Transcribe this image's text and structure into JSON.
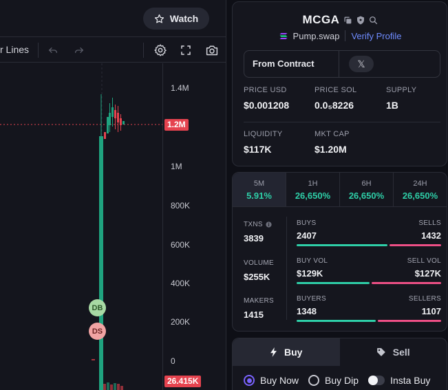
{
  "chart": {
    "watch_label": "Watch",
    "toolbar_label": "r Lines",
    "price_axis": [
      "1.4M",
      "1.2M",
      "1M",
      "800K",
      "600K",
      "400K",
      "200K",
      "0"
    ],
    "current_price_tag": "1.2M",
    "volume_tag": "26.415K",
    "markers": {
      "dev_buy": "DB",
      "dev_sell": "DS"
    }
  },
  "token": {
    "name": "MCGA",
    "dex": "Pump.swap",
    "verify_label": "Verify Profile",
    "source_label": "From Contract",
    "x_label": "𝕏",
    "stats": [
      {
        "label": "PRICE USD",
        "value": "$0.001208"
      },
      {
        "label": "PRICE SOL",
        "value": "0.0₅8226"
      },
      {
        "label": "SUPPLY",
        "value": "1B"
      },
      {
        "label": "LIQUIDITY",
        "value": "$117K"
      },
      {
        "label": "MKT CAP",
        "value": "$1.20M"
      }
    ]
  },
  "timeframes": [
    {
      "label": "5M",
      "value": "5.91%"
    },
    {
      "label": "1H",
      "value": "26,650%"
    },
    {
      "label": "6H",
      "value": "26,650%"
    },
    {
      "label": "24H",
      "value": "26,650%"
    }
  ],
  "activity": {
    "txns": {
      "label": "TXNS",
      "value": "3839"
    },
    "volume": {
      "label": "VOLUME",
      "value": "$255K"
    },
    "makers": {
      "label": "MAKERS",
      "value": "1415"
    },
    "buys": {
      "left_label": "BUYS",
      "right_label": "SELLS",
      "left_value": "2407",
      "right_value": "1432",
      "ratio": 0.627
    },
    "vol": {
      "left_label": "BUY VOL",
      "right_label": "SELL VOL",
      "left_value": "$129K",
      "right_value": "$127K",
      "ratio": 0.504
    },
    "people": {
      "left_label": "BUYERS",
      "right_label": "SELLERS",
      "left_value": "1348",
      "right_value": "1107",
      "ratio": 0.549
    }
  },
  "trade": {
    "buy_tab": "Buy",
    "sell_tab": "Sell",
    "order_types": [
      "Buy Now",
      "Buy Dip",
      "Insta Buy"
    ]
  },
  "colors": {
    "green": "#2ecfa8",
    "red": "#ee4f86",
    "accent": "#6f8cff",
    "candle_green": "#1fa37f",
    "candle_red": "#e5434f"
  }
}
